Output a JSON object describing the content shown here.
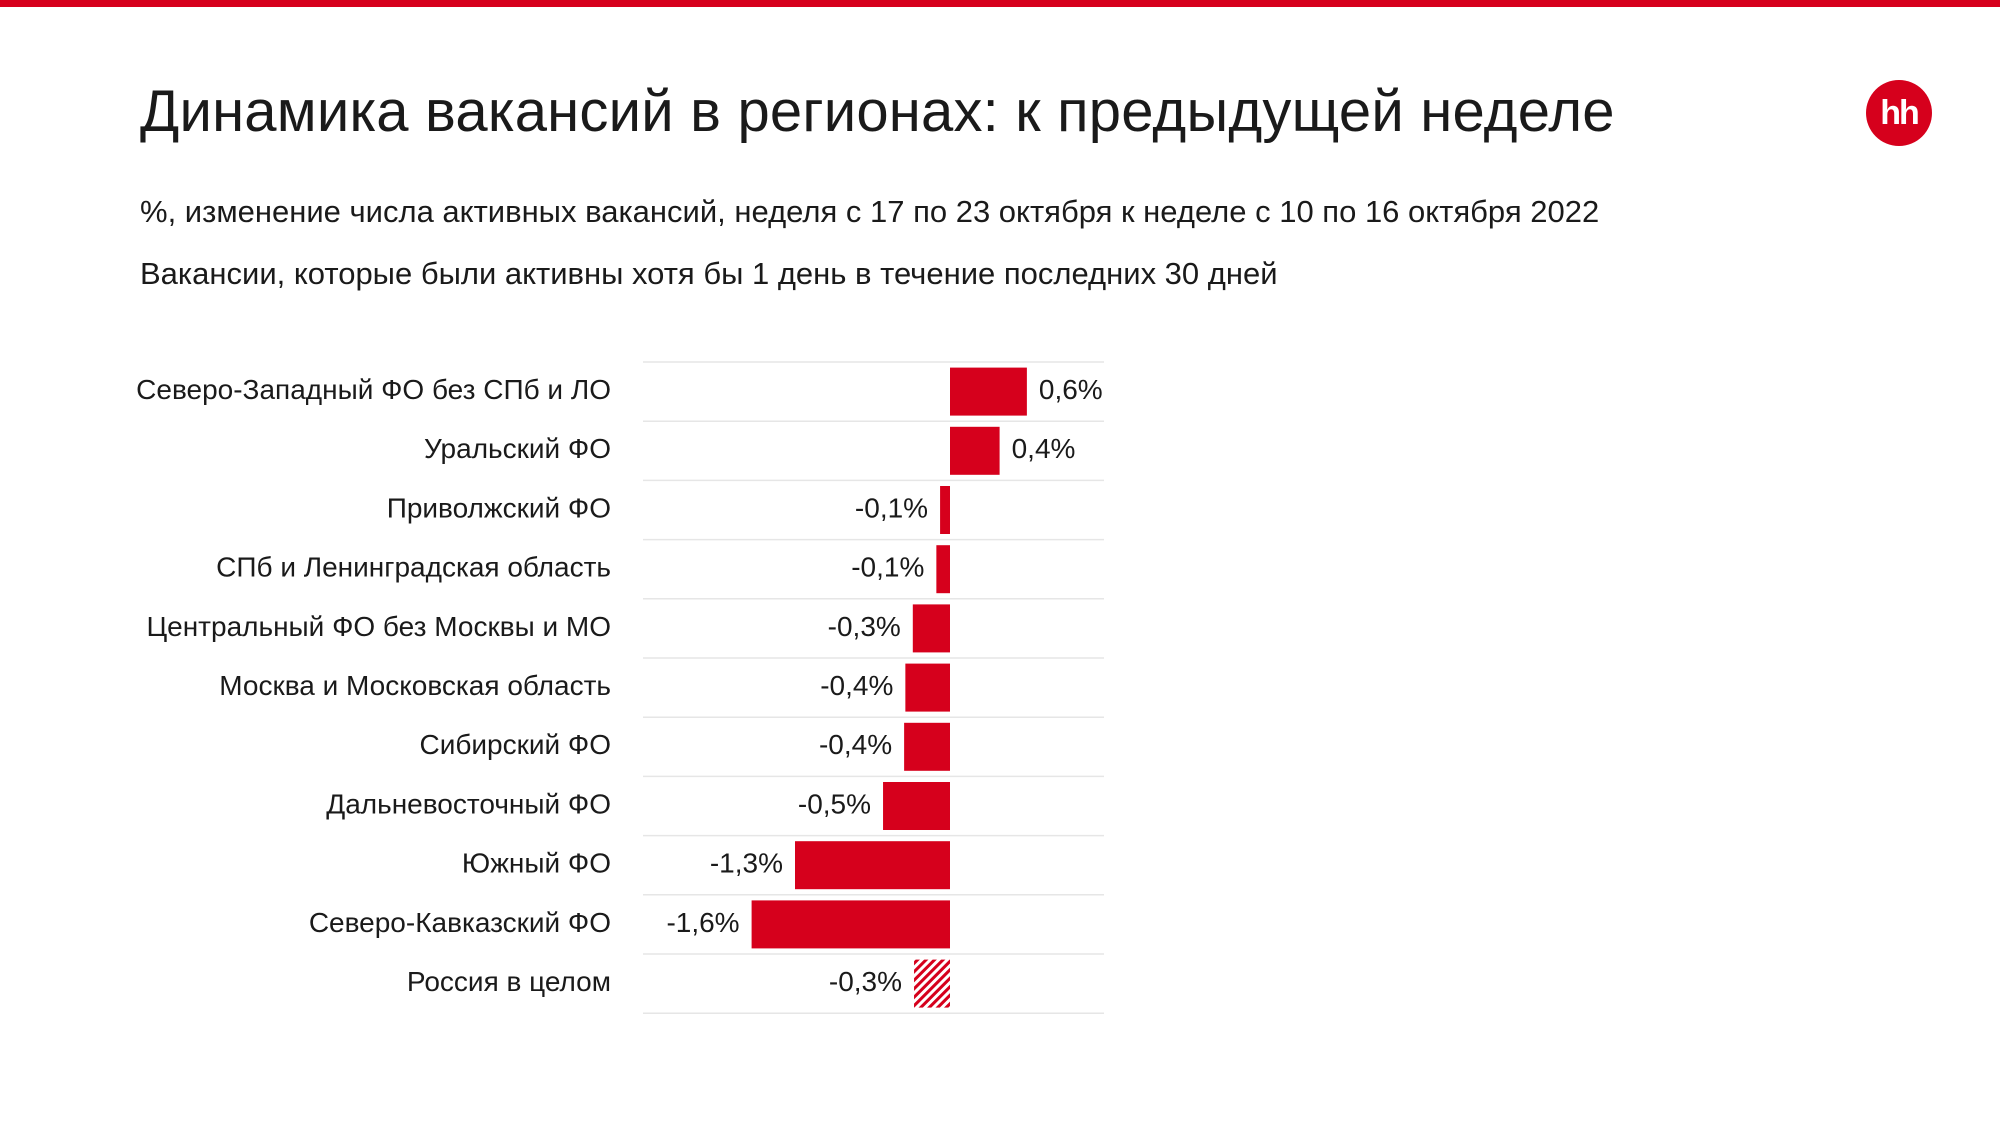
{
  "header": {
    "title": "Динамика вакансий в регионах: к предыдущей неделе",
    "subtitle_1": "%, изменение числа активных вакансий, неделя с 17 по 23 октября к неделе с 10 по 16 октября 2022",
    "subtitle_2": "Вакансии, которые были активны хотя бы 1 день в течение последних 30 дней",
    "logo_text": "hh"
  },
  "colors": {
    "accent": "#d6001c",
    "row_divider": "#e6e6e6",
    "text": "#1a1a1a"
  },
  "chart_data": {
    "type": "bar",
    "orientation": "horizontal",
    "title": "Динамика вакансий в регионах: к предыдущей неделе",
    "xlabel": "",
    "ylabel": "",
    "grid": false,
    "legend": "none",
    "xlim": [
      -1.65,
      0.75
    ],
    "categories": [
      "Северо-Западный ФО без СПб и ЛО",
      "Уральский ФО",
      "Приволжский ФО",
      "СПб и Ленинградская область",
      "Центральный ФО без Москвы и МО",
      "Москва и Московская область",
      "Сибирский ФО",
      "Дальневосточный ФО",
      "Южный ФО",
      "Северо-Кавказский ФО",
      "Россия в целом"
    ],
    "values": [
      0.62,
      0.4,
      -0.08,
      -0.11,
      -0.3,
      -0.36,
      -0.37,
      -0.54,
      -1.25,
      -1.6,
      -0.29
    ],
    "data_labels": [
      "0,6%",
      "0,4%",
      "-0,1%",
      "-0,1%",
      "-0,3%",
      "-0,4%",
      "-0,4%",
      "-0,5%",
      "-1,3%",
      "-1,6%",
      "-0,3%"
    ],
    "highlight": [
      false,
      false,
      false,
      false,
      false,
      false,
      false,
      false,
      false,
      false,
      true
    ],
    "highlight_style": "hatched"
  }
}
